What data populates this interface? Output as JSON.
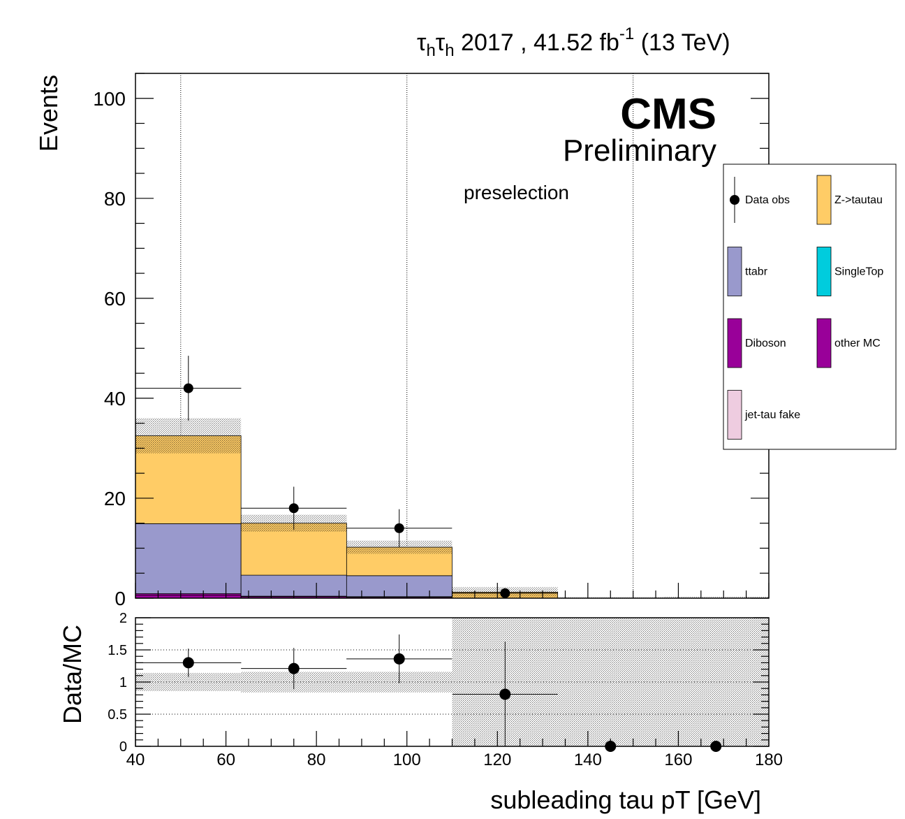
{
  "header": {
    "channel_tau1": "τ",
    "channel_sub1": "h",
    "channel_tau2": "τ",
    "channel_sub2": "h",
    "lumi_main": " 2017 , 41.52 fb",
    "lumi_exp": "-1",
    "energy": " (13 TeV)"
  },
  "labels": {
    "cms": "CMS",
    "preliminary": "Preliminary",
    "region": "preselection"
  },
  "chart_data": [
    {
      "type": "bar",
      "subtype": "stacked-histogram",
      "ylabel": "Events",
      "xlim": [
        40,
        180
      ],
      "ylim": [
        0,
        105
      ],
      "yticks": [
        0,
        20,
        40,
        60,
        80,
        100
      ],
      "xgrid": [
        50,
        100,
        150
      ],
      "bin_edges": [
        40,
        63.33,
        86.67,
        110,
        133.33,
        156.67,
        180
      ],
      "series": [
        {
          "name": "Diboson",
          "color": "#990099",
          "values": [
            0.6,
            0.3,
            0.2,
            0.0,
            0.0,
            0.0
          ]
        },
        {
          "name": "other MC",
          "color": "#990099",
          "values": [
            0.3,
            0.1,
            0.1,
            0.0,
            0.0,
            0.0
          ]
        },
        {
          "name": "ttabr",
          "color": "#9999cc",
          "values": [
            14.0,
            4.2,
            4.2,
            0.0,
            0.0,
            0.0
          ]
        },
        {
          "name": "SingleTop",
          "color": "#00ccdd",
          "values": [
            0.0,
            0.0,
            0.0,
            0.0,
            0.0,
            0.0
          ]
        },
        {
          "name": "jet-tau fake",
          "color": "#eecce0",
          "values": [
            0.0,
            0.0,
            0.0,
            0.0,
            0.0,
            0.0
          ]
        },
        {
          "name": "Z->tautau",
          "color": "#ffcc66",
          "values": [
            17.6,
            10.4,
            5.7,
            1.2,
            0.0,
            0.0
          ]
        }
      ],
      "total_mc": [
        32.5,
        15.0,
        10.2,
        1.2,
        0.0,
        0.0
      ],
      "mc_uncertainty": [
        3.5,
        1.7,
        1.3,
        1.0,
        0.2,
        0.3
      ],
      "data": {
        "name": "Data obs",
        "x": [
          51.7,
          75.0,
          98.3,
          121.7
        ],
        "y": [
          42,
          18,
          14,
          1
        ],
        "yerr": [
          6.5,
          4.3,
          3.8,
          1.0
        ],
        "xerr": [
          11.67,
          11.67,
          11.67,
          11.67
        ]
      },
      "legend": {
        "placement": "right",
        "entries": [
          {
            "label": "Data obs",
            "kind": "marker"
          },
          {
            "label": "Z->tautau",
            "kind": "box",
            "color": "#ffcc66"
          },
          {
            "label": "ttabr",
            "kind": "box",
            "color": "#9999cc"
          },
          {
            "label": "SingleTop",
            "kind": "box",
            "color": "#00ccdd"
          },
          {
            "label": "Diboson",
            "kind": "box",
            "color": "#990099"
          },
          {
            "label": "other MC",
            "kind": "box",
            "color": "#990099"
          },
          {
            "label": "jet-tau fake",
            "kind": "box",
            "color": "#eecce0"
          }
        ]
      }
    },
    {
      "type": "scatter",
      "subtype": "ratio",
      "ylabel": "Data/MC",
      "xlabel": "subleading tau pT [GeV]",
      "xlim": [
        40,
        180
      ],
      "ylim": [
        0,
        2
      ],
      "yticks": [
        0,
        0.5,
        1,
        1.5,
        2
      ],
      "ytick_labels": [
        "0",
        "0.5",
        "1",
        "1.5",
        "2"
      ],
      "xticks": [
        40,
        60,
        80,
        100,
        120,
        140,
        160,
        180
      ],
      "ygrid": [
        0.5,
        1,
        1.5
      ],
      "x": [
        51.7,
        75.0,
        98.3,
        121.7,
        145.0,
        168.3
      ],
      "y": [
        1.3,
        1.21,
        1.36,
        0.81,
        0.0,
        0.0
      ],
      "yerr": [
        0.22,
        0.32,
        0.38,
        0.82,
        0.0,
        0.0
      ],
      "xerr": [
        11.67,
        11.67,
        11.67,
        11.67,
        0,
        0
      ],
      "band_low": [
        0.86,
        0.84,
        0.84,
        0,
        0,
        0
      ],
      "band_high": [
        1.14,
        1.16,
        1.16,
        2,
        2,
        2
      ]
    }
  ]
}
